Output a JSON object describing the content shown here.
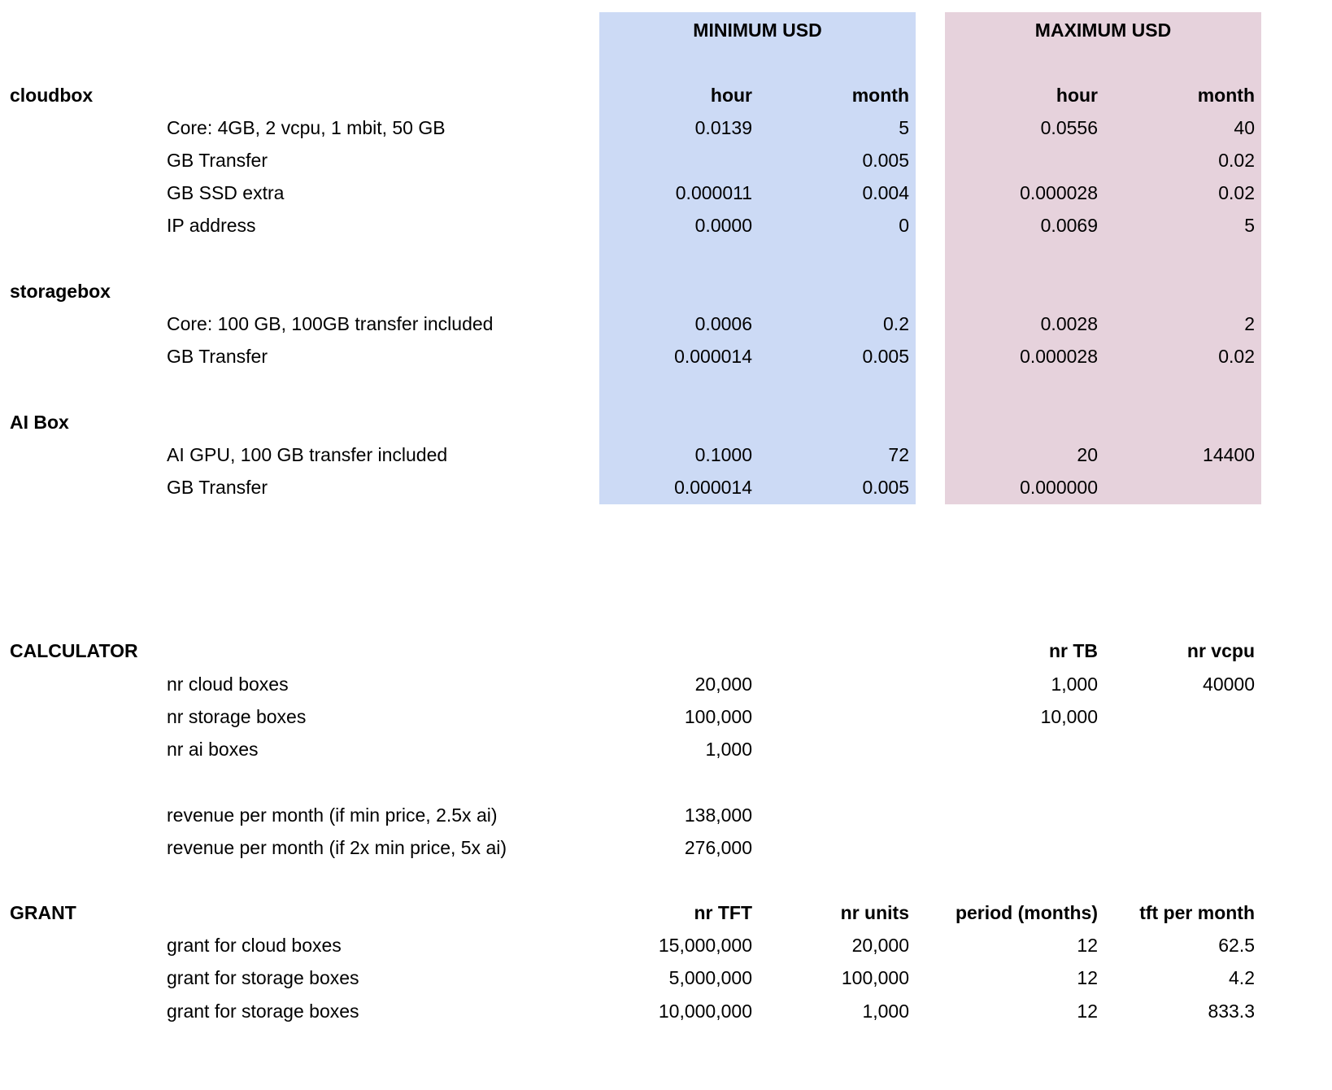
{
  "pricing": {
    "min_header": "MINIMUM USD",
    "max_header": "MAXIMUM USD",
    "colors": {
      "min_band": "#ccdaf5",
      "max_band": "#e6d2dc"
    },
    "rows": [
      {
        "label": "cloudbox",
        "item": "",
        "values": [
          "hour",
          "month",
          "hour",
          "month"
        ],
        "bold": true
      },
      {
        "label": "",
        "item": "Core: 4GB, 2 vcpu, 1 mbit, 50 GB",
        "values": [
          "0.0139",
          "5",
          "0.0556",
          "40"
        ]
      },
      {
        "label": "",
        "item": "GB Transfer",
        "values": [
          "",
          "0.005",
          "",
          "0.02"
        ]
      },
      {
        "label": "",
        "item": "GB SSD extra",
        "values": [
          "0.000011",
          "0.004",
          "0.000028",
          "0.02"
        ]
      },
      {
        "label": "",
        "item": "IP address",
        "values": [
          "0.0000",
          "0",
          "0.0069",
          "5"
        ]
      },
      {
        "label": "storagebox",
        "item": "",
        "values": [
          "",
          "",
          "",
          ""
        ],
        "bold": true
      },
      {
        "label": "",
        "item": "Core: 100 GB, 100GB transfer included",
        "values": [
          "0.0006",
          "0.2",
          "0.0028",
          "2"
        ]
      },
      {
        "label": "",
        "item": "GB Transfer",
        "values": [
          "0.000014",
          "0.005",
          "0.000028",
          "0.02"
        ]
      },
      {
        "label": "AI Box",
        "item": "",
        "values": [
          "",
          "",
          "",
          ""
        ],
        "bold": true
      },
      {
        "label": "",
        "item": "AI GPU, 100 GB transfer included",
        "values": [
          "0.1000",
          "72",
          "20",
          "14400"
        ]
      },
      {
        "label": "",
        "item": "GB Transfer",
        "values": [
          "0.000014",
          "0.005",
          "0.000000",
          ""
        ]
      }
    ]
  },
  "calculator": {
    "rows": [
      {
        "label": "CALCULATOR",
        "item": "",
        "values": [
          "",
          "",
          "nr TB",
          "nr vcpu"
        ],
        "bold": true
      },
      {
        "label": "",
        "item": "nr cloud boxes",
        "values": [
          "20,000",
          "",
          "1,000",
          "40000"
        ]
      },
      {
        "label": "",
        "item": "nr storage boxes",
        "values": [
          "100,000",
          "",
          "10,000",
          ""
        ]
      },
      {
        "label": "",
        "item": "nr ai boxes",
        "values": [
          "1,000",
          "",
          "",
          ""
        ]
      },
      {
        "label": "",
        "item": "revenue per month (if min price, 2.5x ai)",
        "values": [
          "138,000",
          "",
          "",
          ""
        ]
      },
      {
        "label": "",
        "item": "revenue per month (if 2x min price, 5x ai)",
        "values": [
          "276,000",
          "",
          "",
          ""
        ]
      }
    ]
  },
  "grant": {
    "rows": [
      {
        "label": "GRANT",
        "item": "",
        "values": [
          "nr TFT",
          "nr units",
          "period (months)",
          "tft per month"
        ],
        "bold": true
      },
      {
        "label": "",
        "item": "grant for cloud boxes",
        "values": [
          "15,000,000",
          "20,000",
          "12",
          "62.5"
        ]
      },
      {
        "label": "",
        "item": "grant for storage boxes",
        "values": [
          "5,000,000",
          "100,000",
          "12",
          "4.2"
        ]
      },
      {
        "label": "",
        "item": "grant for storage boxes",
        "values": [
          "10,000,000",
          "1,000",
          "12",
          "833.3"
        ]
      }
    ]
  }
}
